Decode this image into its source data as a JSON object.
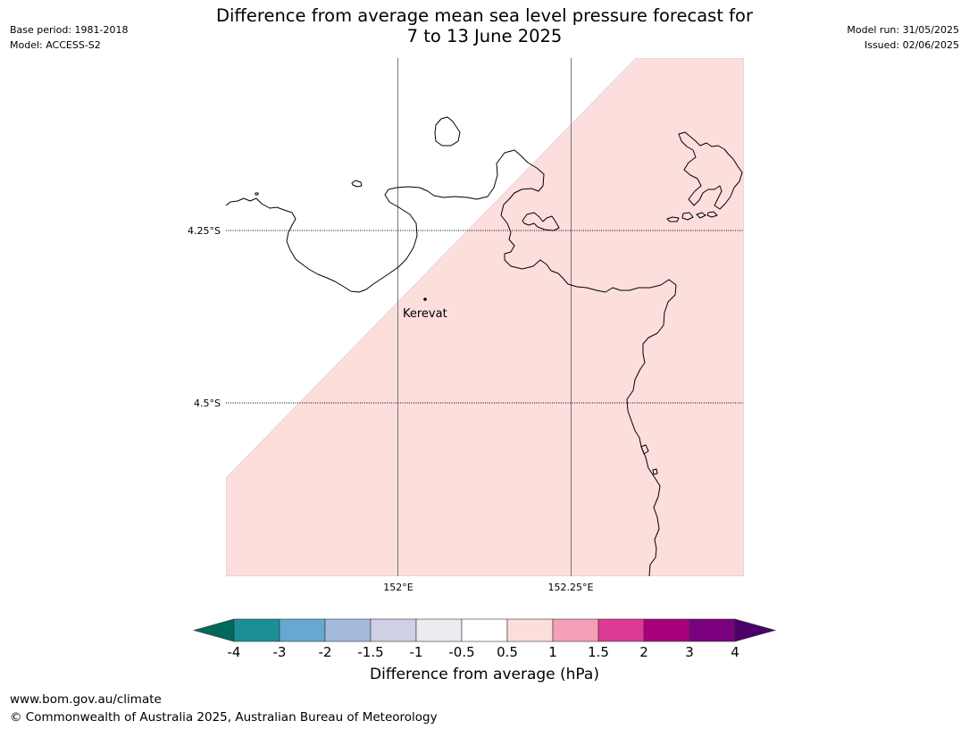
{
  "header": {
    "base_period": "Base period: 1981-2018",
    "model": "Model: ACCESS-S2",
    "title_line1": "Difference from average mean sea level pressure forecast for",
    "title_line2": "7 to 13 June 2025",
    "model_run": "Model run: 31/05/2025",
    "issued": "Issued: 02/06/2025"
  },
  "map": {
    "lat_labels": [
      "4.25°S",
      "4.5°S"
    ],
    "lon_labels": [
      "152°E",
      "152.25°E"
    ],
    "place_label": "Kerevat",
    "anomaly_fill_color": "#fcdedc",
    "coastline_color": "#000000"
  },
  "colorbar": {
    "title": "Difference from average (hPa)",
    "tick_labels": [
      "-4",
      "-3",
      "-2",
      "-1.5",
      "-1",
      "-0.5",
      "0.5",
      "1",
      "1.5",
      "2",
      "3",
      "4"
    ],
    "under_color": "#00695c",
    "over_color": "#4a0068",
    "colors": [
      "#1a8f96",
      "#65a8d0",
      "#a5b9da",
      "#cfcfe6",
      "#ebebf0",
      "#ffffff",
      "#fcdedc",
      "#f6a0b8",
      "#de3996",
      "#a8007c",
      "#7a007e"
    ]
  },
  "footer": {
    "url": "www.bom.gov.au/climate",
    "copyright": "© Commonwealth of Australia 2025, Australian Bureau of Meteorology"
  }
}
